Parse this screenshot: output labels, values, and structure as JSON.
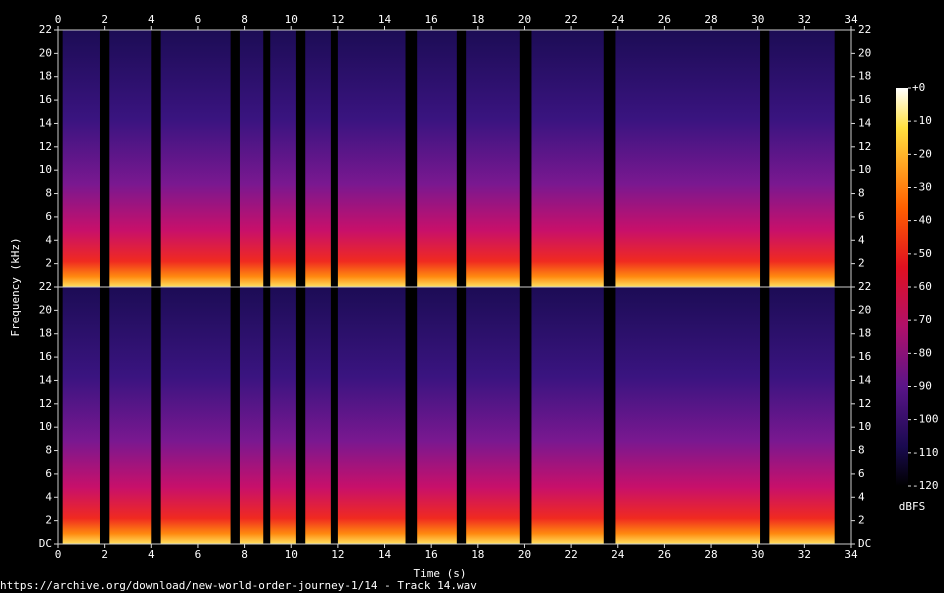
{
  "chart_data": {
    "type": "spectrogram",
    "x_label": "Time (s)",
    "y_label": "Frequency (kHz)",
    "xlim": [
      0,
      34
    ],
    "xticks": [
      0,
      2,
      4,
      6,
      8,
      10,
      12,
      14,
      16,
      18,
      20,
      22,
      24,
      26,
      28,
      30,
      32,
      34
    ],
    "ylim": [
      0,
      22
    ],
    "channels": [
      {
        "yticks": [
          2,
          4,
          6,
          8,
          10,
          12,
          14,
          16,
          18,
          20,
          22
        ]
      },
      {
        "yticks": [
          {
            "value": 0,
            "label": "DC"
          },
          2,
          4,
          6,
          8,
          10,
          12,
          14,
          16,
          18,
          20,
          22
        ]
      }
    ],
    "segments": [
      [
        0.2,
        1.8
      ],
      [
        2.2,
        4.0
      ],
      [
        4.4,
        7.4
      ],
      [
        7.8,
        8.8
      ],
      [
        9.1,
        10.2
      ],
      [
        10.6,
        11.7
      ],
      [
        12.0,
        14.9
      ],
      [
        15.4,
        17.1
      ],
      [
        17.5,
        19.8
      ],
      [
        20.3,
        23.4
      ],
      [
        23.9,
        30.1
      ],
      [
        30.5,
        33.3
      ]
    ],
    "clim": [
      -120,
      0
    ],
    "cticks": [
      {
        "value": 0,
        "label": "+0"
      },
      -10,
      -20,
      -30,
      -40,
      -50,
      -60,
      -70,
      -80,
      -90,
      -100,
      -110,
      -120
    ],
    "clabel": "dBFS",
    "footer": "https://archive.org/download/new-world-order-journey-1/14 - Track 14.wav"
  }
}
